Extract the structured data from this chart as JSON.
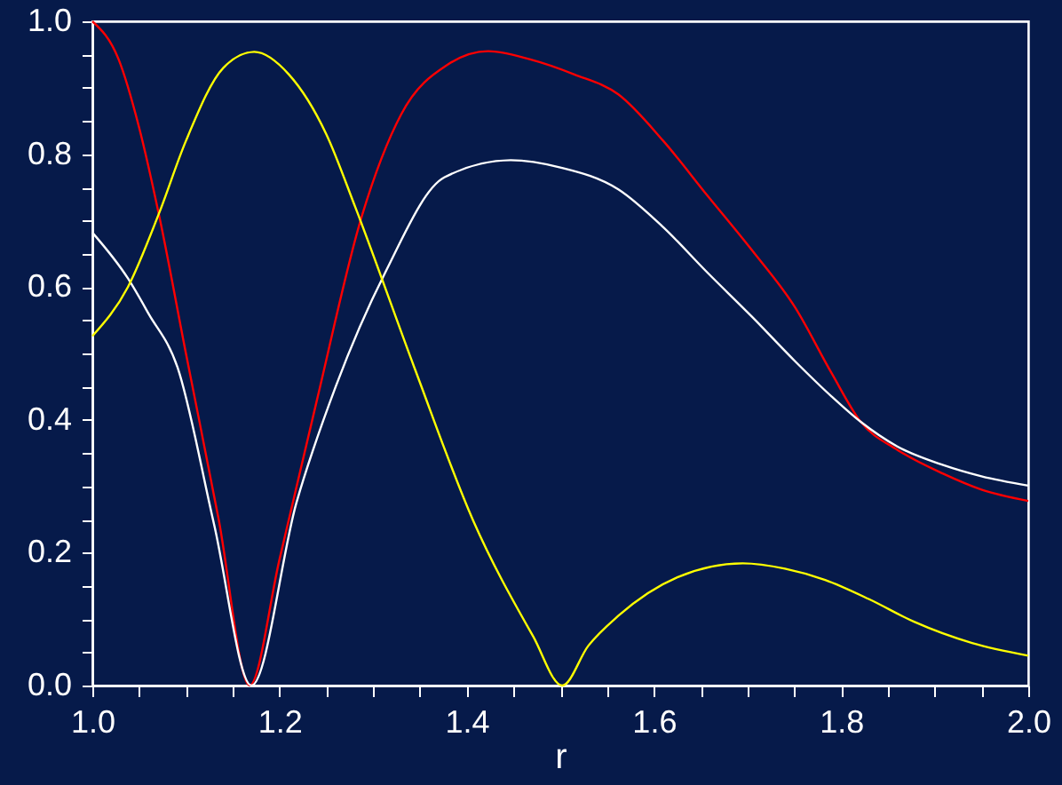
{
  "chart_data": {
    "type": "line",
    "xlabel": "r",
    "xlim": [
      1.0,
      2.0
    ],
    "ylim": [
      0.0,
      1.0
    ],
    "xticks": [
      {
        "value": 1.0,
        "label": "1.0"
      },
      {
        "value": 1.05,
        "label": null
      },
      {
        "value": 1.1,
        "label": null
      },
      {
        "value": 1.15,
        "label": null
      },
      1.2,
      {
        "value": 1.25,
        "label": null
      },
      {
        "value": 1.3,
        "label": null
      },
      {
        "value": 1.35,
        "label": null
      },
      1.4,
      {
        "value": 1.45,
        "label": null
      },
      {
        "value": 1.5,
        "label": null
      },
      {
        "value": 1.55,
        "label": null
      },
      1.6,
      {
        "value": 1.65,
        "label": null
      },
      {
        "value": 1.7,
        "label": null
      },
      {
        "value": 1.75,
        "label": null
      },
      1.8,
      {
        "value": 1.85,
        "label": null
      },
      {
        "value": 1.9,
        "label": null
      },
      {
        "value": 1.95,
        "label": null
      },
      {
        "value": 2.0,
        "label": "2.0"
      }
    ],
    "yticks": [
      {
        "value": 0.0,
        "label": "0.0"
      },
      {
        "value": 0.05,
        "label": null
      },
      {
        "value": 0.1,
        "label": null
      },
      {
        "value": 0.15,
        "label": null
      },
      0.2,
      {
        "value": 0.25,
        "label": null
      },
      {
        "value": 0.3,
        "label": null
      },
      {
        "value": 0.35,
        "label": null
      },
      0.4,
      {
        "value": 0.45,
        "label": null
      },
      {
        "value": 0.5,
        "label": null
      },
      {
        "value": 0.55,
        "label": null
      },
      0.6,
      {
        "value": 0.65,
        "label": null
      },
      {
        "value": 0.7,
        "label": null
      },
      {
        "value": 0.75,
        "label": null
      },
      0.8,
      {
        "value": 0.85,
        "label": null
      },
      {
        "value": 0.9,
        "label": null
      },
      {
        "value": 0.95,
        "label": null
      },
      {
        "value": 1.0,
        "label": "1.0"
      }
    ],
    "grid": false,
    "marker": "none",
    "line_style": "solid",
    "series": [
      {
        "color": "#ff0000",
        "x": [
          1.0,
          1.028,
          1.05,
          1.071,
          1.1,
          1.135,
          1.168,
          1.2,
          1.24,
          1.288,
          1.33,
          1.38,
          1.423,
          1.467,
          1.515,
          1.562,
          1.61,
          1.657,
          1.705,
          1.751,
          1.79,
          1.821,
          1.86,
          1.909,
          1.95,
          2.0
        ],
        "values": [
          1.0,
          0.943,
          0.84,
          0.71,
          0.5,
          0.25,
          0.0,
          0.19,
          0.43,
          0.707,
          0.86,
          0.935,
          0.955,
          0.943,
          0.92,
          0.89,
          0.82,
          0.738,
          0.655,
          0.569,
          0.47,
          0.397,
          0.355,
          0.319,
          0.295,
          0.278
        ]
      },
      {
        "color": "#ffffff",
        "x": [
          1.0,
          1.038,
          1.06,
          1.091,
          1.13,
          1.17,
          1.218,
          1.26,
          1.313,
          1.376,
          1.447,
          1.5,
          1.562,
          1.61,
          1.657,
          1.705,
          1.751,
          1.79,
          1.821,
          1.86,
          1.909,
          1.95,
          2.0
        ],
        "values": [
          0.682,
          0.613,
          0.56,
          0.479,
          0.243,
          0.0,
          0.275,
          0.45,
          0.622,
          0.765,
          0.791,
          0.78,
          0.747,
          0.69,
          0.622,
          0.555,
          0.488,
          0.435,
          0.397,
          0.36,
          0.332,
          0.315,
          0.301
        ]
      },
      {
        "color": "#ffff00",
        "x": [
          1.0,
          1.038,
          1.071,
          1.1,
          1.14,
          1.173,
          1.21,
          1.25,
          1.281,
          1.344,
          1.407,
          1.471,
          1.502,
          1.53,
          1.562,
          1.625,
          1.695,
          1.74,
          1.783,
          1.83,
          1.878,
          1.94,
          2.0
        ],
        "values": [
          0.526,
          0.6,
          0.71,
          0.82,
          0.93,
          0.954,
          0.92,
          0.83,
          0.72,
          0.479,
          0.248,
          0.074,
          0.0,
          0.06,
          0.105,
          0.163,
          0.184,
          0.176,
          0.159,
          0.13,
          0.096,
          0.064,
          0.045
        ]
      }
    ]
  }
}
